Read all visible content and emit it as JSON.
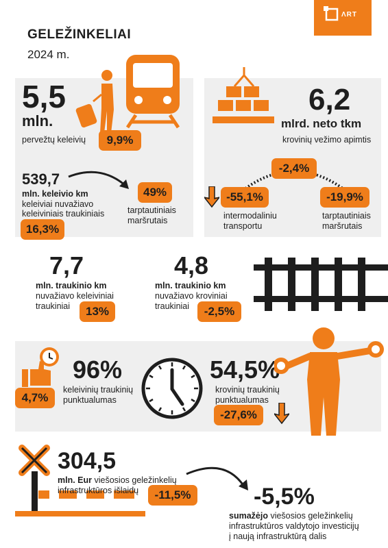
{
  "brand": {
    "logo_text": "ΛRT",
    "accent": "#ef7d1a"
  },
  "header": {
    "title": "GELEŽINKELIAI",
    "year": "2024 m."
  },
  "passengers": {
    "value": "5,5",
    "unit": "mln.",
    "label": "pervežtų keleivių",
    "change": "9,9%",
    "km_value": "539,7",
    "km_unit": "mln. keleivio km",
    "km_label_1": "keleiviai nuvažiavo",
    "km_label_2": "keleiviniais traukiniais",
    "km_change": "16,3%",
    "intl_share": "49%",
    "intl_label_1": "tarptautiniais",
    "intl_label_2": "maršrutais"
  },
  "freight": {
    "value": "6,2",
    "unit": "mlrd. neto tkm",
    "label": "krovinių vežimo apimtis",
    "change_total": "-2,4%",
    "change_intermodal": "-55,1%",
    "intermodal_label_1": "intermodaliniu",
    "intermodal_label_2": "transportu",
    "change_intl": "-19,9%",
    "intl_label_1": "tarptautiniais",
    "intl_label_2": "maršrutais"
  },
  "train_km": {
    "passenger_value": "7,7",
    "passenger_unit": "mln. traukinio km",
    "passenger_label_1": "nuvažiavo keleiviniai",
    "passenger_label_2": "traukiniai",
    "passenger_change": "13%",
    "freight_value": "4,8",
    "freight_unit": "mln. traukinio km",
    "freight_label_1": "nuvažiavo kroviniai",
    "freight_label_2": "traukiniai",
    "freight_change": "-2,5%"
  },
  "punctuality": {
    "passenger_value": "96%",
    "passenger_label_1": "keleivinių traukinių",
    "passenger_label_2": "punktualumas",
    "passenger_change": "4,7%",
    "freight_value": "54,5%",
    "freight_label_1": "krovinių traukinių",
    "freight_label_2": "punktualumas",
    "freight_change": "-27,6%"
  },
  "infrastructure": {
    "value": "304,5",
    "unit": "mln. Eur",
    "label_rest": " viešosios geležinkelių",
    "label_2": "infrastruktūros išlaidų",
    "change": "-11,5%",
    "invest_change": "-5,5%",
    "invest_bold": "sumažėjo",
    "invest_rest": " viešosios geležinkelių",
    "invest_2": "infrastruktūros valdytojo investicijų",
    "invest_3": "į naują infrastruktūrą dalis"
  }
}
